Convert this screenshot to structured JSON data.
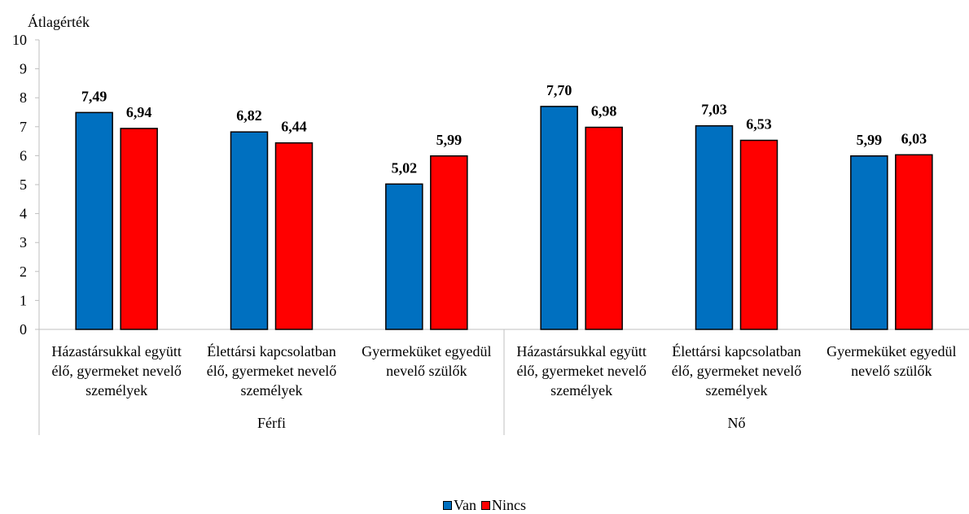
{
  "chart_data": {
    "type": "bar",
    "ylabel": "Átlagérték",
    "ylim": [
      0,
      10
    ],
    "yticks": [
      0,
      1,
      2,
      3,
      4,
      5,
      6,
      7,
      8,
      9,
      10
    ],
    "grid": false,
    "legend_position": "bottom",
    "groups": [
      {
        "label": "Férfi",
        "categories": [
          {
            "label": "Házastársukkal együtt élő, gyermeket nevelő személyek",
            "values": [
              7.49,
              6.94
            ],
            "value_labels": [
              "7,49",
              "6,94"
            ]
          },
          {
            "label": "Élettársi kapcsolatban élő, gyermeket nevelő személyek",
            "values": [
              6.82,
              6.44
            ],
            "value_labels": [
              "6,82",
              "6,44"
            ]
          },
          {
            "label": "Gyermeküket egyedül nevelő szülők",
            "values": [
              5.02,
              5.99
            ],
            "value_labels": [
              "5,02",
              "5,99"
            ]
          }
        ]
      },
      {
        "label": "Nő",
        "categories": [
          {
            "label": "Házastársukkal együtt élő, gyermeket nevelő személyek",
            "values": [
              7.7,
              6.98
            ],
            "value_labels": [
              "7,70",
              "6,98"
            ]
          },
          {
            "label": "Élettársi kapcsolatban élő, gyermeket nevelő személyek",
            "values": [
              7.03,
              6.53
            ],
            "value_labels": [
              "7,03",
              "6,53"
            ]
          },
          {
            "label": "Gyermeküket egyedül nevelő szülők",
            "values": [
              5.99,
              6.03
            ],
            "value_labels": [
              "5,99",
              "6,03"
            ]
          }
        ]
      }
    ],
    "series": [
      {
        "name": "Van",
        "color": "#0070C0"
      },
      {
        "name": "Nincs",
        "color": "#FF0000"
      }
    ]
  }
}
